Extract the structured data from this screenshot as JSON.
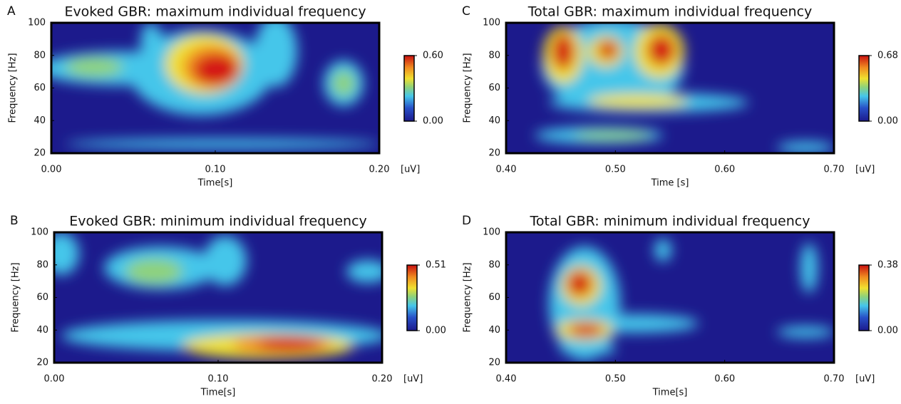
{
  "chart_data": [
    {
      "type": "heatmap",
      "panel_label": "A",
      "title": "Evoked GBR: maximum individual frequency",
      "xlabel": "Time[s]",
      "ylabel": "Frequency  [Hz]",
      "xlim": [
        0,
        0.2
      ],
      "xticks": [
        {
          "value": 0,
          "label": "0.00"
        },
        {
          "value": 0.1,
          "label": "0.10"
        },
        {
          "value": 0.2,
          "label": "0.20"
        }
      ],
      "ylim": [
        20,
        100
      ],
      "yticks": [
        20,
        40,
        60,
        80,
        100
      ],
      "colorbar": {
        "lim": [
          0,
          0.6
        ],
        "ticks": [
          {
            "value": 0,
            "label": "0.00"
          },
          {
            "value": 0.6,
            "label": "0.60"
          }
        ],
        "unit": "[uV]"
      }
    },
    {
      "type": "heatmap",
      "panel_label": "B",
      "title": "Evoked GBR: minimum individual frequency",
      "xlabel": "Time[s]",
      "ylabel": "Frequency  [Hz]",
      "xlim": [
        0,
        0.2
      ],
      "xticks": [
        {
          "value": 0,
          "label": "0.00"
        },
        {
          "value": 0.1,
          "label": "0.10"
        },
        {
          "value": 0.2,
          "label": "0.20"
        }
      ],
      "ylim": [
        20,
        100
      ],
      "yticks": [
        20,
        40,
        60,
        80,
        100
      ],
      "colorbar": {
        "lim": [
          0,
          0.51
        ],
        "ticks": [
          {
            "value": 0,
            "label": "0.00"
          },
          0.51
        ],
        "unit": "[uV]"
      }
    },
    {
      "type": "heatmap",
      "panel_label": "C",
      "title": "Total GBR: maximum individual frequency",
      "xlabel": "Time [s]",
      "ylabel": "Frequency  [Hz]",
      "xlim": [
        0.4,
        0.7
      ],
      "xticks": [
        {
          "value": 0.4,
          "label": "0.40"
        },
        {
          "value": 0.5,
          "label": "0.50"
        },
        {
          "value": 0.6,
          "label": "0.60"
        },
        {
          "value": 0.7,
          "label": "0.70"
        }
      ],
      "ylim": [
        20,
        100
      ],
      "yticks": [
        20,
        40,
        60,
        80,
        100
      ],
      "colorbar": {
        "lim": [
          0,
          0.68
        ],
        "ticks": [
          {
            "value": 0,
            "label": "0.00"
          },
          0.68
        ],
        "unit": "[uV]"
      }
    },
    {
      "type": "heatmap",
      "panel_label": "D",
      "title": "Total GBR: minimum individual frequency",
      "xlabel": "Time[s]",
      "ylabel": "Frequency  [Hz]",
      "xlim": [
        0.4,
        0.7
      ],
      "xticks": [
        {
          "value": 0.4,
          "label": "0.40"
        },
        {
          "value": 0.5,
          "label": "0.50"
        },
        {
          "value": 0.6,
          "label": "0.60"
        },
        {
          "value": 0.7,
          "label": "0.70"
        }
      ],
      "ylim": [
        20,
        100
      ],
      "yticks": [
        20,
        40,
        60,
        80,
        100
      ],
      "colorbar": {
        "lim": [
          0,
          0.38
        ],
        "ticks": [
          {
            "value": 0,
            "label": "0.00"
          },
          0.38
        ],
        "unit": "[uV]"
      }
    }
  ]
}
